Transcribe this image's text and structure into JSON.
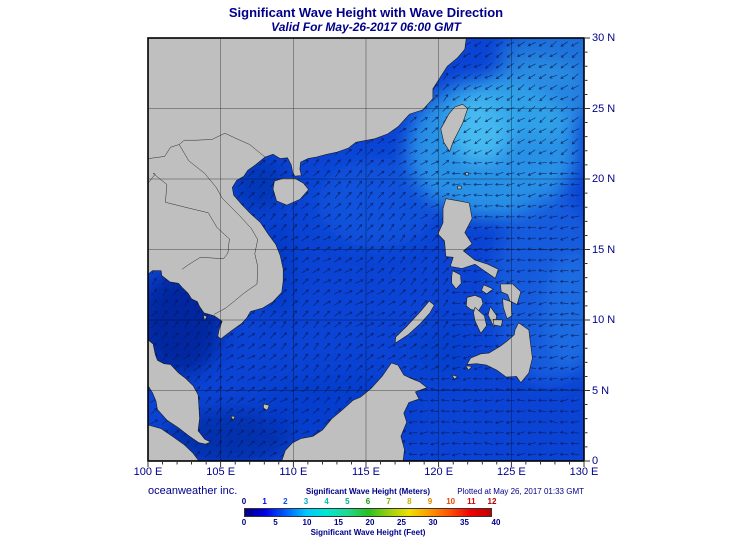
{
  "header": {
    "title": "Significant Wave Height with Wave Direction",
    "subtitle": "Valid For May-26-2017 06:00 GMT"
  },
  "map": {
    "x_axis_labels": [
      "100 E",
      "105 E",
      "110 E",
      "115 E",
      "120 E",
      "125 E",
      "130 E"
    ],
    "y_axis_labels": [
      "30 N",
      "25 N",
      "20 N",
      "15 N",
      "10 N",
      "5 N",
      "0"
    ]
  },
  "footer": {
    "credit": "oceanweather inc.",
    "plotted": "Plotted at May 26, 2017 01:33 GMT"
  },
  "legend": {
    "meters_label": "Significant Wave Height (Meters)",
    "feet_label": "Significant Wave Height (Feet)",
    "meters_ticks": [
      "0",
      "1",
      "2",
      "3",
      "4",
      "5",
      "6",
      "7",
      "8",
      "9",
      "10",
      "11",
      "12"
    ],
    "meters_tick_colors": [
      "#000080",
      "#0000E0",
      "#0050E8",
      "#00A0D8",
      "#00C0B8",
      "#00B088",
      "#10A010",
      "#78B000",
      "#C8B000",
      "#E08800",
      "#E84800",
      "#E00000",
      "#B80000"
    ],
    "feet_ticks": [
      "0",
      "5",
      "10",
      "15",
      "20",
      "25",
      "30",
      "35",
      "40"
    ],
    "colorbar_stops": [
      "#000080",
      "#0000E8",
      "#0060FF",
      "#00C8FF",
      "#00E8D0",
      "#20D890",
      "#28C020",
      "#98D010",
      "#F0E000",
      "#FF9800",
      "#FF5000",
      "#F00000",
      "#C00000"
    ]
  },
  "colors": {
    "ocean_base": "#0B44D4",
    "land": "#BFBFBF",
    "text": "#00008B"
  }
}
